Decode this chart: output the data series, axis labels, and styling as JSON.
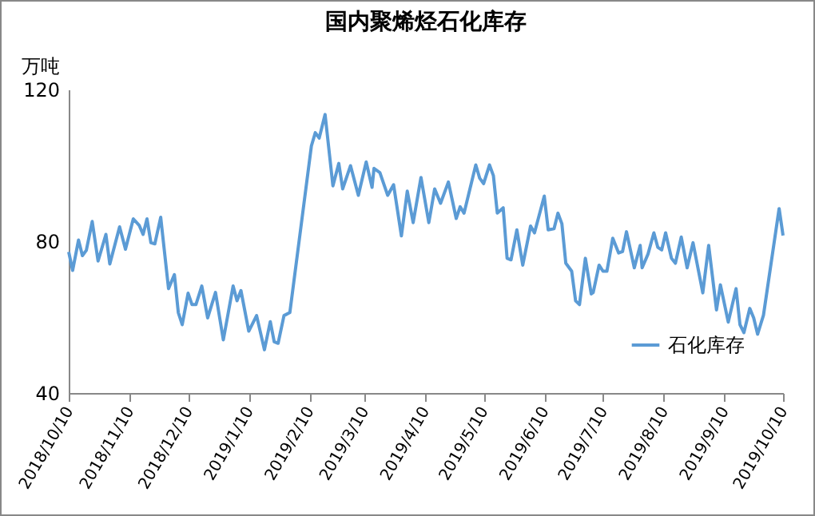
{
  "chart_data": {
    "type": "line",
    "title": "国内聚烯烃石化库存",
    "ylabel": "万吨",
    "xlim": [
      "2018-10-10",
      "2019-10-10"
    ],
    "xticks": [
      {
        "value": "2018-10-10",
        "label": "2018/10/10"
      },
      {
        "value": "2018-11-10",
        "label": "2018/11/10"
      },
      {
        "value": "2018-12-10",
        "label": "2018/12/10"
      },
      {
        "value": "2019-01-10",
        "label": "2019/1/10"
      },
      {
        "value": "2019-02-10",
        "label": "2019/2/10"
      },
      {
        "value": "2019-03-10",
        "label": "2019/3/10"
      },
      {
        "value": "2019-04-10",
        "label": "2019/4/10"
      },
      {
        "value": "2019-05-10",
        "label": "2019/5/10"
      },
      {
        "value": "2019-06-10",
        "label": "2019/6/10"
      },
      {
        "value": "2019-07-10",
        "label": "2019/7/10"
      },
      {
        "value": "2019-08-10",
        "label": "2019/8/10"
      },
      {
        "value": "2019-09-10",
        "label": "2019/9/10"
      },
      {
        "value": "2019-10-10",
        "label": "2019/10/10"
      }
    ],
    "ylim": [
      40,
      120
    ],
    "yticks": [
      40,
      80,
      120
    ],
    "grid": false,
    "legend": "bottom right",
    "marker": "none",
    "line_style": "solid",
    "x": [
      "2018-10-10",
      "2018-10-12",
      "2018-10-15",
      "2018-10-17",
      "2018-10-19",
      "2018-10-22",
      "2018-10-25",
      "2018-10-29",
      "2018-10-31",
      "2018-11-05",
      "2018-11-08",
      "2018-11-12",
      "2018-11-15",
      "2018-11-17",
      "2018-11-19",
      "2018-11-21",
      "2018-11-23",
      "2018-11-26",
      "2018-11-30",
      "2018-12-03",
      "2018-12-05",
      "2018-12-07",
      "2018-12-10",
      "2018-12-12",
      "2018-12-14",
      "2018-12-17",
      "2018-12-20",
      "2018-12-24",
      "2018-12-28",
      "2019-01-02",
      "2019-01-04",
      "2019-01-06",
      "2019-01-10",
      "2019-01-14",
      "2019-01-18",
      "2019-01-21",
      "2019-01-23",
      "2019-01-25",
      "2019-01-28",
      "2019-01-31",
      "2019-02-11",
      "2019-02-13",
      "2019-02-15",
      "2019-02-18",
      "2019-02-22",
      "2019-02-25",
      "2019-02-27",
      "2019-03-03",
      "2019-03-07",
      "2019-03-11",
      "2019-03-14",
      "2019-03-15",
      "2019-03-18",
      "2019-03-22",
      "2019-03-25",
      "2019-03-29",
      "2019-04-01",
      "2019-04-04",
      "2019-04-08",
      "2019-04-12",
      "2019-04-15",
      "2019-04-18",
      "2019-04-22",
      "2019-04-26",
      "2019-04-28",
      "2019-04-30",
      "2019-05-06",
      "2019-05-08",
      "2019-05-10",
      "2019-05-13",
      "2019-05-15",
      "2019-05-17",
      "2019-05-20",
      "2019-05-22",
      "2019-05-24",
      "2019-05-27",
      "2019-05-30",
      "2019-06-03",
      "2019-06-05",
      "2019-06-10",
      "2019-06-12",
      "2019-06-15",
      "2019-06-17",
      "2019-06-19",
      "2019-06-21",
      "2019-06-24",
      "2019-06-26",
      "2019-06-28",
      "2019-07-01",
      "2019-07-04",
      "2019-07-05",
      "2019-07-08",
      "2019-07-10",
      "2019-07-12",
      "2019-07-15",
      "2019-07-18",
      "2019-07-20",
      "2019-07-22",
      "2019-07-26",
      "2019-07-29",
      "2019-07-30",
      "2019-08-02",
      "2019-08-05",
      "2019-08-07",
      "2019-08-09",
      "2019-08-11",
      "2019-08-14",
      "2019-08-16",
      "2019-08-19",
      "2019-08-22",
      "2019-08-25",
      "2019-08-30",
      "2019-09-02",
      "2019-09-06",
      "2019-09-08",
      "2019-09-12",
      "2019-09-16",
      "2019-09-18",
      "2019-09-20",
      "2019-09-23",
      "2019-09-25",
      "2019-09-27",
      "2019-09-30",
      "2019-10-08",
      "2019-10-10"
    ],
    "series": [
      {
        "name": "石化库存",
        "color": "#5b9bd5",
        "values": [
          77.2,
          72.3,
          80.3,
          76.2,
          77.6,
          85.2,
          74.8,
          81.8,
          74.0,
          83.8,
          77.9,
          85.9,
          84.2,
          81.8,
          85.9,
          79.6,
          79.3,
          86.3,
          67.5,
          71.2,
          61.2,
          58.0,
          66.3,
          63.3,
          63.3,
          68.2,
          59.8,
          66.5,
          54.0,
          68.2,
          64.3,
          67.0,
          56.3,
          60.4,
          51.4,
          58.8,
          53.5,
          53.1,
          60.4,
          61.2,
          105.1,
          108.6,
          107.2,
          113.4,
          94.6,
          100.5,
          93.8,
          99.9,
          92.1,
          100.9,
          94.2,
          99.2,
          98.1,
          92.1,
          94.9,
          81.4,
          93.2,
          84.9,
          96.8,
          84.9,
          93.8,
          90.0,
          95.6,
          86.0,
          89.1,
          87.4,
          100.1,
          96.6,
          95.2,
          100.1,
          97.3,
          87.4,
          88.8,
          75.5,
          75.1,
          83.0,
          73.7,
          84.0,
          82.2,
          91.9,
          83.0,
          83.3,
          87.4,
          84.6,
          74.2,
          72.1,
          64.3,
          63.3,
          75.5,
          66.1,
          66.5,
          73.7,
          72.1,
          72.1,
          80.8,
          76.9,
          77.3,
          82.5,
          73.0,
          78.9,
          73.0,
          76.6,
          82.2,
          78.4,
          77.7,
          82.2,
          75.5,
          74.2,
          81.1,
          73.0,
          79.6,
          66.4,
          78.9,
          61.9,
          68.5,
          58.7,
          67.5,
          58.0,
          55.9,
          62.3,
          59.8,
          55.5,
          60.5,
          88.6,
          81.5
        ]
      }
    ]
  }
}
